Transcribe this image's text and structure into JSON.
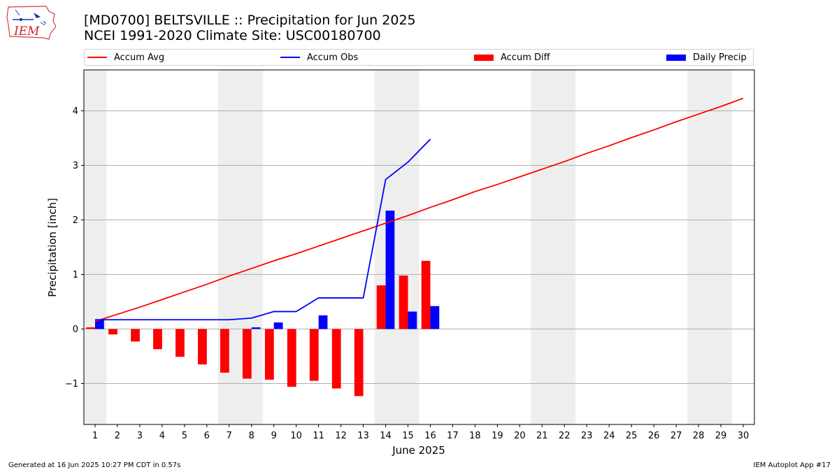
{
  "header": {
    "title_line1": "[MD0700] BELTSVILLE :: Precipitation for Jun 2025",
    "title_line2": "NCEI 1991-2020 Climate Site: USC00180700"
  },
  "logo": {
    "text": "IEM",
    "icon": "iem-iowa-logo"
  },
  "legend": {
    "accum_avg": "Accum Avg",
    "accum_obs": "Accum Obs",
    "accum_diff": "Accum Diff",
    "daily_precip": "Daily Precip"
  },
  "colors": {
    "accum_avg": "#ff0000",
    "accum_obs": "#0000ff",
    "accum_diff": "#ff0000",
    "daily_precip": "#0000ff",
    "weekend_shade": "#eeeeee",
    "grid": "#b0b0b0"
  },
  "chart_data": {
    "type": "bar",
    "xlabel": "June 2025",
    "ylabel": "Precipitation [inch]",
    "x": [
      1,
      2,
      3,
      4,
      5,
      6,
      7,
      8,
      9,
      10,
      11,
      12,
      13,
      14,
      15,
      16,
      17,
      18,
      19,
      20,
      21,
      22,
      23,
      24,
      25,
      26,
      27,
      28,
      29,
      30
    ],
    "xlim": [
      0.5,
      30.5
    ],
    "ylim": [
      -1.75,
      4.75
    ],
    "yticks": [
      -1,
      0,
      1,
      2,
      3,
      4
    ],
    "ytick_labels": [
      "−1",
      "0",
      "1",
      "2",
      "3",
      "4"
    ],
    "grid": "horizontal",
    "legend_position": "top",
    "weekend_spans": [
      [
        0.5,
        1.5
      ],
      [
        6.5,
        8.5
      ],
      [
        13.5,
        15.5
      ],
      [
        20.5,
        22.5
      ],
      [
        27.5,
        29.5
      ]
    ],
    "series": [
      {
        "name": "Accum Avg",
        "kind": "line",
        "x": [
          1,
          2,
          3,
          4,
          5,
          6,
          7,
          8,
          9,
          10,
          11,
          12,
          13,
          14,
          15,
          16,
          17,
          18,
          19,
          20,
          21,
          22,
          23,
          24,
          25,
          26,
          27,
          28,
          29,
          30
        ],
        "values": [
          0.14,
          0.27,
          0.4,
          0.54,
          0.68,
          0.82,
          0.97,
          1.11,
          1.25,
          1.38,
          1.52,
          1.66,
          1.8,
          1.94,
          2.08,
          2.23,
          2.37,
          2.52,
          2.65,
          2.79,
          2.93,
          3.07,
          3.22,
          3.36,
          3.51,
          3.65,
          3.8,
          3.94,
          4.08,
          4.23
        ]
      },
      {
        "name": "Accum Obs",
        "kind": "line",
        "x": [
          1,
          2,
          3,
          4,
          5,
          6,
          7,
          8,
          9,
          10,
          11,
          12,
          13,
          14,
          15,
          16
        ],
        "values": [
          0.17,
          0.17,
          0.17,
          0.17,
          0.17,
          0.17,
          0.17,
          0.2,
          0.32,
          0.32,
          0.57,
          0.57,
          0.57,
          2.74,
          3.06,
          3.48
        ]
      },
      {
        "name": "Accum Diff",
        "kind": "bar",
        "offset": -0.2,
        "x": [
          1,
          2,
          3,
          4,
          5,
          6,
          7,
          8,
          9,
          10,
          11,
          12,
          13,
          14,
          15,
          16
        ],
        "values": [
          0.03,
          -0.1,
          -0.23,
          -0.37,
          -0.51,
          -0.65,
          -0.8,
          -0.91,
          -0.93,
          -1.06,
          -0.95,
          -1.09,
          -1.23,
          0.8,
          0.98,
          1.25
        ]
      },
      {
        "name": "Daily Precip",
        "kind": "bar",
        "offset": 0.2,
        "x": [
          1,
          2,
          3,
          4,
          5,
          6,
          7,
          8,
          9,
          10,
          11,
          12,
          13,
          14,
          15,
          16
        ],
        "values": [
          0.17,
          0,
          0,
          0,
          0,
          0,
          0,
          0.03,
          0.12,
          0,
          0.25,
          0,
          0,
          2.17,
          0.32,
          0.42
        ]
      }
    ]
  },
  "footer": {
    "left": "Generated at 16 Jun 2025 10:27 PM CDT in 0.57s",
    "right": "IEM Autoplot App #17"
  }
}
